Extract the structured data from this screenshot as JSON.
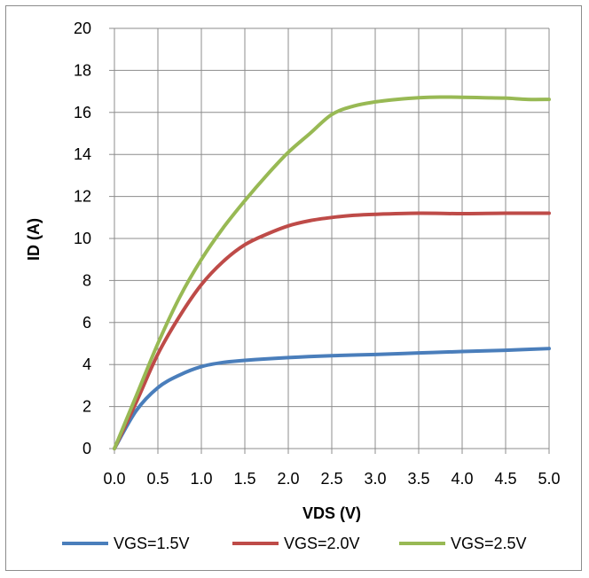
{
  "chart_data": {
    "type": "line",
    "title": "",
    "xlabel": "VDS (V)",
    "ylabel": "ID (A)",
    "xlim": [
      0,
      5
    ],
    "ylim": [
      0,
      20
    ],
    "x_ticks": [
      "0.0",
      "0.5",
      "1.0",
      "1.5",
      "2.0",
      "2.5",
      "3.0",
      "3.5",
      "4.0",
      "4.5",
      "5.0"
    ],
    "y_ticks": [
      "0",
      "2",
      "4",
      "6",
      "8",
      "10",
      "12",
      "14",
      "16",
      "18",
      "20"
    ],
    "grid": true,
    "legend_position": "bottom",
    "series": [
      {
        "name": "VGS=1.5V",
        "color": "#4a7ebb",
        "points": [
          [
            0,
            0
          ],
          [
            0.25,
            1.8
          ],
          [
            0.5,
            2.9
          ],
          [
            0.75,
            3.5
          ],
          [
            1.0,
            3.9
          ],
          [
            1.25,
            4.1
          ],
          [
            1.5,
            4.2
          ],
          [
            2.0,
            4.33
          ],
          [
            2.5,
            4.42
          ],
          [
            3.0,
            4.48
          ],
          [
            3.5,
            4.55
          ],
          [
            4.0,
            4.62
          ],
          [
            4.5,
            4.68
          ],
          [
            5.0,
            4.76
          ]
        ]
      },
      {
        "name": "VGS=2.0V",
        "color": "#be4b48",
        "points": [
          [
            0,
            0
          ],
          [
            0.25,
            2.2
          ],
          [
            0.5,
            4.5
          ],
          [
            0.75,
            6.3
          ],
          [
            1.0,
            7.8
          ],
          [
            1.25,
            8.9
          ],
          [
            1.5,
            9.7
          ],
          [
            1.75,
            10.2
          ],
          [
            2.0,
            10.6
          ],
          [
            2.25,
            10.85
          ],
          [
            2.5,
            11.0
          ],
          [
            2.75,
            11.1
          ],
          [
            3.0,
            11.15
          ],
          [
            3.5,
            11.2
          ],
          [
            4.0,
            11.18
          ],
          [
            4.5,
            11.2
          ],
          [
            5.0,
            11.2
          ]
        ]
      },
      {
        "name": "VGS=2.5V",
        "color": "#98b954",
        "points": [
          [
            0,
            0
          ],
          [
            0.25,
            2.5
          ],
          [
            0.5,
            5.0
          ],
          [
            0.75,
            7.2
          ],
          [
            1.0,
            9.0
          ],
          [
            1.25,
            10.5
          ],
          [
            1.5,
            11.8
          ],
          [
            1.75,
            13.0
          ],
          [
            2.0,
            14.1
          ],
          [
            2.25,
            15.0
          ],
          [
            2.5,
            15.9
          ],
          [
            2.75,
            16.3
          ],
          [
            3.0,
            16.5
          ],
          [
            3.25,
            16.62
          ],
          [
            3.5,
            16.7
          ],
          [
            3.75,
            16.73
          ],
          [
            4.0,
            16.72
          ],
          [
            4.25,
            16.7
          ],
          [
            4.5,
            16.68
          ],
          [
            4.75,
            16.62
          ],
          [
            5.0,
            16.62
          ]
        ]
      }
    ]
  }
}
